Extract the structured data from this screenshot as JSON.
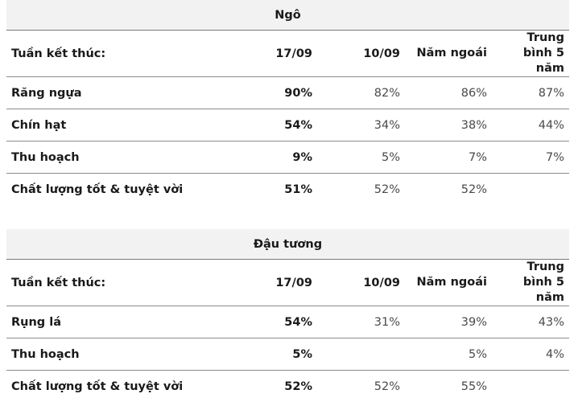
{
  "corn": {
    "title": "Ngô",
    "header": [
      "Tuần kết thúc:",
      "17/09",
      "10/09",
      "Năm ngoái",
      "Trung bình 5 năm"
    ],
    "rows": [
      [
        "Răng ngựa",
        "90%",
        "82%",
        "86%",
        "87%"
      ],
      [
        "Chín hạt",
        "54%",
        "34%",
        "38%",
        "44%"
      ],
      [
        "Thu hoạch",
        "9%",
        "5%",
        "7%",
        "7%"
      ],
      [
        "Chất lượng tốt & tuyệt vời",
        "51%",
        "52%",
        "52%",
        ""
      ]
    ]
  },
  "soy": {
    "title": "Đậu tương",
    "header": [
      "Tuần kết thúc:",
      "17/09",
      "10/09",
      "Năm ngoái",
      "Trung bình 5 năm"
    ],
    "rows": [
      [
        "Rụng lá",
        "54%",
        "31%",
        "39%",
        "43%"
      ],
      [
        "Thu hoạch",
        "5%",
        "",
        "5%",
        "4%"
      ],
      [
        "Chất lượng tốt & tuyệt vời",
        "52%",
        "52%",
        "55%",
        ""
      ]
    ]
  }
}
